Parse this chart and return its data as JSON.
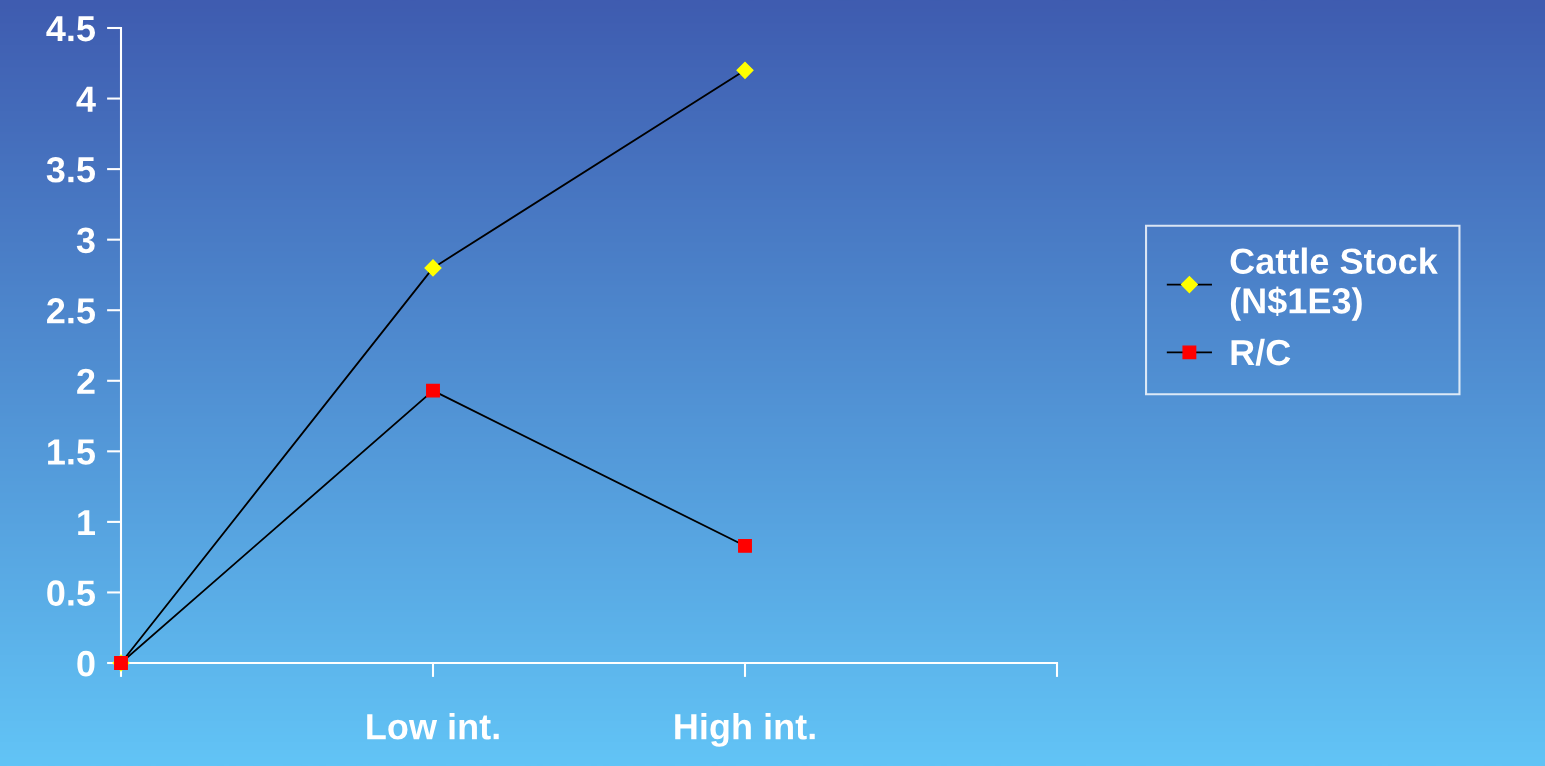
{
  "chart_data": {
    "type": "line",
    "categories": [
      null,
      "Low int.",
      "High int.",
      null
    ],
    "series": [
      {
        "name": "Cattle Stock (N$1E3)",
        "color": "#ffff00",
        "marker": "diamond",
        "values": [
          0,
          2.8,
          4.2,
          null
        ]
      },
      {
        "name": "R/C",
        "color": "#ff0000",
        "marker": "square",
        "values": [
          0,
          1.93,
          0.83,
          null
        ]
      }
    ],
    "ylim": [
      0,
      4.5
    ],
    "yticks": [
      0,
      0.5,
      1,
      1.5,
      2,
      2.5,
      3,
      3.5,
      4,
      4.5
    ],
    "grid": false,
    "legend": "right",
    "line_style": "solid"
  }
}
